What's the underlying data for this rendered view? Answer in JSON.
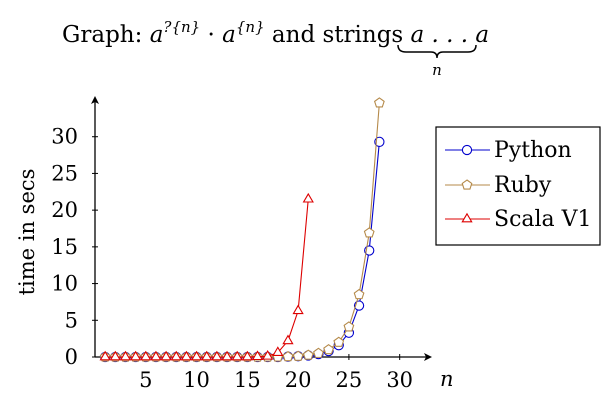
{
  "chart_data": {
    "type": "line",
    "title": {
      "prefix": "Graph: ",
      "a1": "a",
      "sup1": "?{n}",
      "dot": " · ",
      "a2": "a",
      "sup2": "{n}",
      "mid": " and strings ",
      "string": "a . . . a",
      "brace_label": "n"
    },
    "xlabel": "n",
    "ylabel": "time in secs",
    "xlim": [
      0,
      32
    ],
    "ylim": [
      0,
      35
    ],
    "xticks": [
      5,
      10,
      15,
      20,
      25,
      30
    ],
    "yticks": [
      0,
      5,
      10,
      15,
      20,
      25,
      30
    ],
    "grid": false,
    "legend_position": "top-right",
    "series": [
      {
        "name": "Python",
        "color": "#0000cc",
        "marker": "circle",
        "x": [
          1,
          2,
          3,
          4,
          5,
          6,
          7,
          8,
          9,
          10,
          11,
          12,
          13,
          14,
          15,
          16,
          17,
          18,
          19,
          20,
          21,
          22,
          23,
          24,
          25,
          26,
          27,
          28
        ],
        "y": [
          0,
          0,
          0,
          0,
          0,
          0,
          0,
          0,
          0,
          0,
          0,
          0,
          0,
          0,
          0,
          0,
          0,
          0,
          0.05,
          0.1,
          0.2,
          0.4,
          0.8,
          1.6,
          3.3,
          7.0,
          14.5,
          29.3
        ]
      },
      {
        "name": "Ruby",
        "color": "#b58a4a",
        "marker": "pentagon",
        "x": [
          1,
          2,
          3,
          4,
          5,
          6,
          7,
          8,
          9,
          10,
          11,
          12,
          13,
          14,
          15,
          16,
          17,
          18,
          19,
          20,
          21,
          22,
          23,
          24,
          25,
          26,
          27,
          28
        ],
        "y": [
          0,
          0,
          0,
          0,
          0,
          0,
          0,
          0,
          0,
          0,
          0,
          0,
          0,
          0,
          0,
          0,
          0,
          0,
          0.05,
          0.1,
          0.25,
          0.5,
          1.0,
          2.0,
          4.1,
          8.5,
          16.9,
          34.6
        ]
      },
      {
        "name": "Scala V1",
        "color": "#dd0000",
        "marker": "triangle",
        "x": [
          1,
          2,
          3,
          4,
          5,
          6,
          7,
          8,
          9,
          10,
          11,
          12,
          13,
          14,
          15,
          16,
          17,
          18,
          19,
          20,
          21
        ],
        "y": [
          0,
          0,
          0,
          0,
          0,
          0,
          0,
          0,
          0,
          0,
          0,
          0,
          0,
          0,
          0,
          0.05,
          0.1,
          0.6,
          2.2,
          6.3,
          21.5
        ]
      }
    ]
  }
}
